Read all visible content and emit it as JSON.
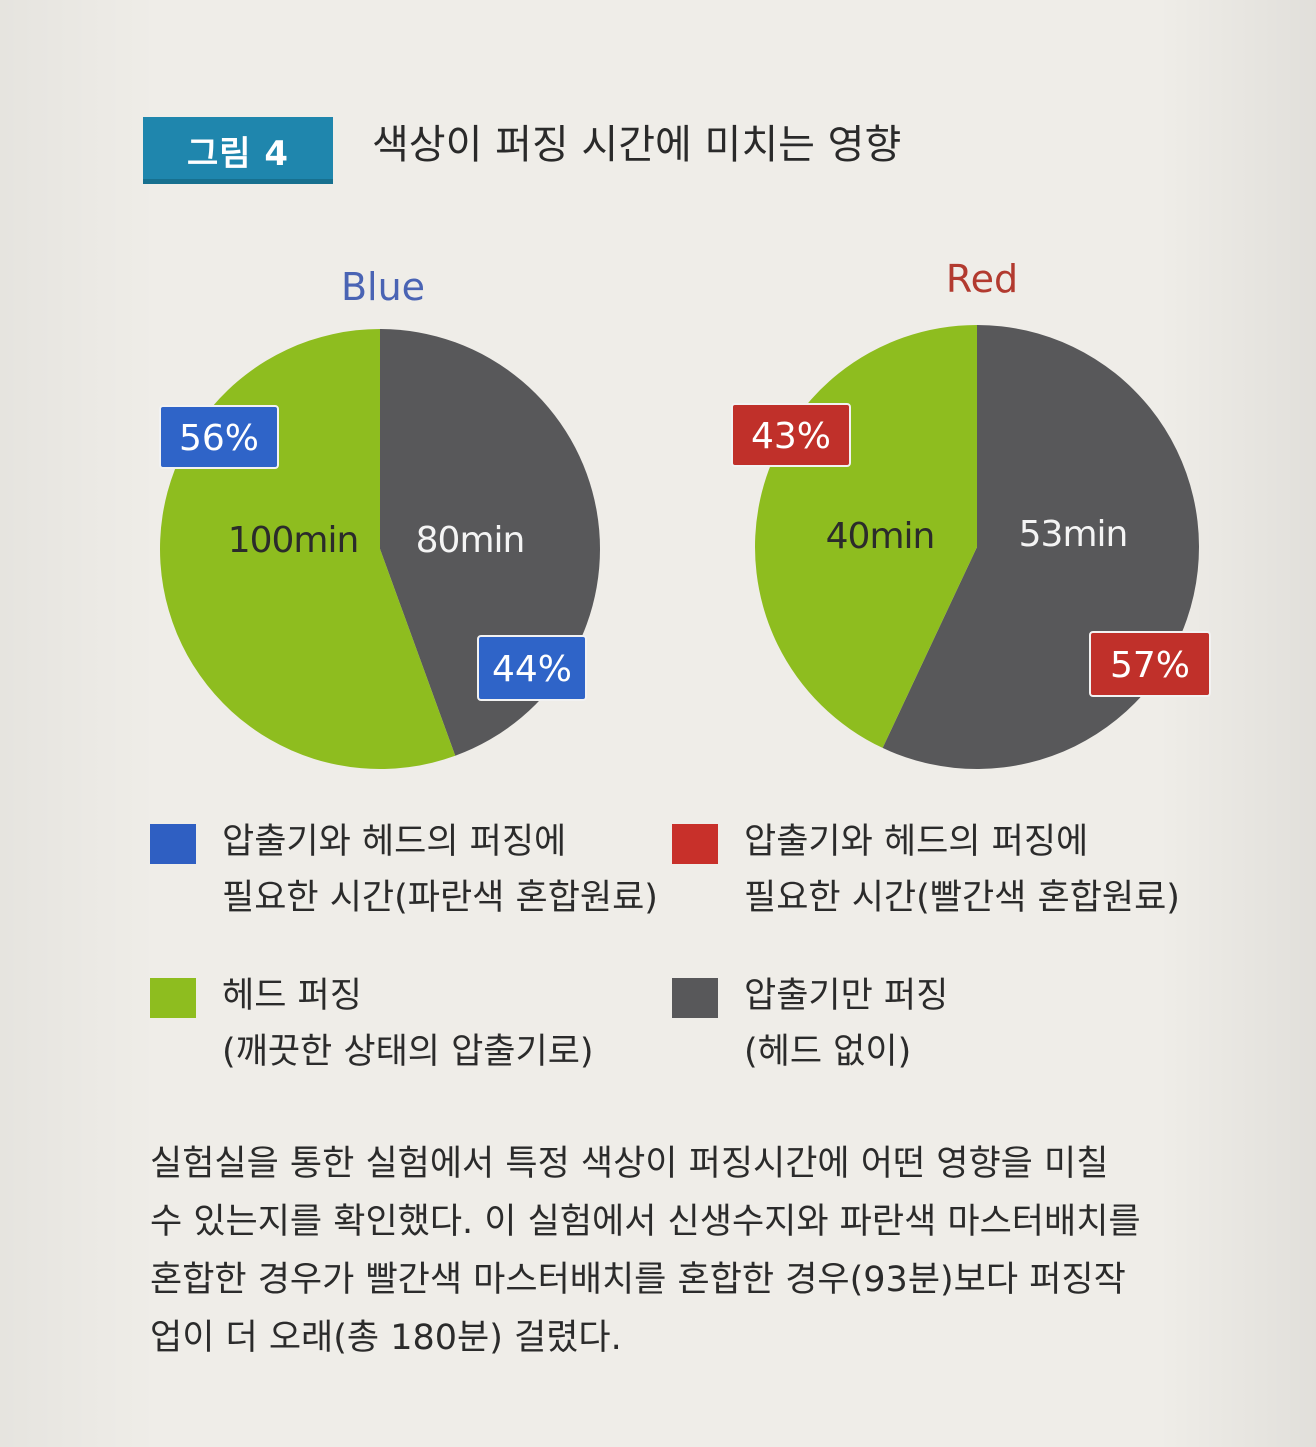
{
  "figure": {
    "badge": "그림 4",
    "title": "색상이 퍼징 시간에 미치는 영향"
  },
  "chart_data": [
    {
      "type": "pie",
      "title": "Blue",
      "title_color": "#4a64b4",
      "slices": [
        {
          "label": "80min",
          "value": 80,
          "percent": "44%",
          "color": "#58585a",
          "badge_color": "#2f64c8"
        },
        {
          "label": "100min",
          "value": 100,
          "percent": "56%",
          "color": "#8ebd1f",
          "badge_color": "#2f64c8"
        }
      ]
    },
    {
      "type": "pie",
      "title": "Red",
      "title_color": "#b23a2f",
      "slices": [
        {
          "label": "53min",
          "value": 53,
          "percent": "57%",
          "color": "#58585a",
          "badge_color": "#c0302a"
        },
        {
          "label": "40min",
          "value": 40,
          "percent": "43%",
          "color": "#8ebd1f",
          "badge_color": "#c0302a"
        }
      ]
    }
  ],
  "legend": [
    {
      "color": "#2f5fc2",
      "line1": "압출기와 헤드의 퍼징에",
      "line2": "필요한 시간(파란색 혼합원료)"
    },
    {
      "color": "#c8302a",
      "line1": "압출기와 헤드의 퍼징에",
      "line2": "필요한 시간(빨간색 혼합원료)"
    },
    {
      "color": "#8ebd1f",
      "line1": "헤드 퍼징",
      "line2": "(깨끗한 상태의 압출기로)"
    },
    {
      "color": "#58585a",
      "line1": "압출기만 퍼징",
      "line2": "(헤드 없이)"
    }
  ],
  "caption": {
    "line1": "실험실을 통한 실험에서 특정 색상이 퍼징시간에 어떤 영향을 미칠",
    "line2": "수 있는지를 확인했다. 이 실험에서 신생수지와 파란색 마스터배치를",
    "line3": "혼합한 경우가 빨간색 마스터배치를 혼합한 경우(93분)보다 퍼징작",
    "line4": "업이 더 오래(총 180분) 걸렸다."
  }
}
